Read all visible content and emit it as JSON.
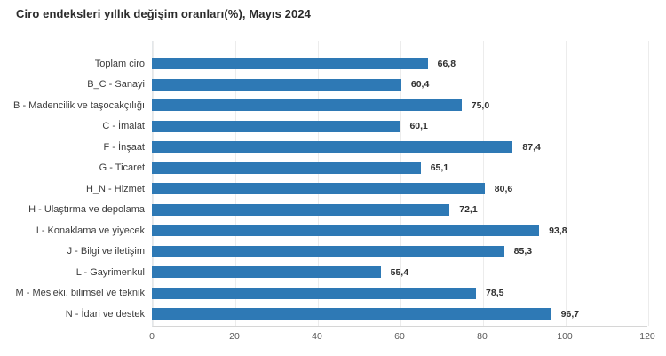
{
  "title": "Ciro endeksleri yıllık değişim oranları(%), Mayıs 2024",
  "colors": {
    "bar": "#2e79b5",
    "title_text": "#2b2b2b",
    "category_text": "#3c3c3c",
    "value_text": "#303030",
    "tick_text": "#5a5a5a",
    "gridline": "#ececec",
    "axis_line": "#d6d6d6"
  },
  "chart_data": {
    "type": "bar",
    "orientation": "horizontal",
    "title": "Ciro endeksleri yıllık değişim oranları(%), Mayıs 2024",
    "categories": [
      "Toplam ciro",
      "B_C - Sanayi",
      "B - Madencilik ve taşocakçılığı",
      "C - İmalat",
      "F - İnşaat",
      "G - Ticaret",
      "H_N - Hizmet",
      "H - Ulaştırma ve depolama",
      "I - Konaklama ve yiyecek",
      "J - Bilgi ve iletişim",
      "L - Gayrimenkul",
      "M - Mesleki, bilimsel ve teknik",
      "N - İdari ve destek"
    ],
    "values": [
      66.8,
      60.4,
      75.0,
      60.1,
      87.4,
      65.1,
      80.6,
      72.1,
      93.8,
      85.3,
      55.4,
      78.5,
      96.7
    ],
    "value_labels": [
      "66,8",
      "60,4",
      "75,0",
      "60,1",
      "87,4",
      "65,1",
      "80,6",
      "72,1",
      "93,8",
      "85,3",
      "55,4",
      "78,5",
      "96,7"
    ],
    "xlabel": "",
    "ylabel": "",
    "xlim": [
      0,
      120
    ],
    "xticks": [
      0,
      20,
      40,
      60,
      80,
      100,
      120
    ],
    "grid": "vertical-light",
    "legend": "none",
    "data_labels": "end-of-bar-bold"
  }
}
